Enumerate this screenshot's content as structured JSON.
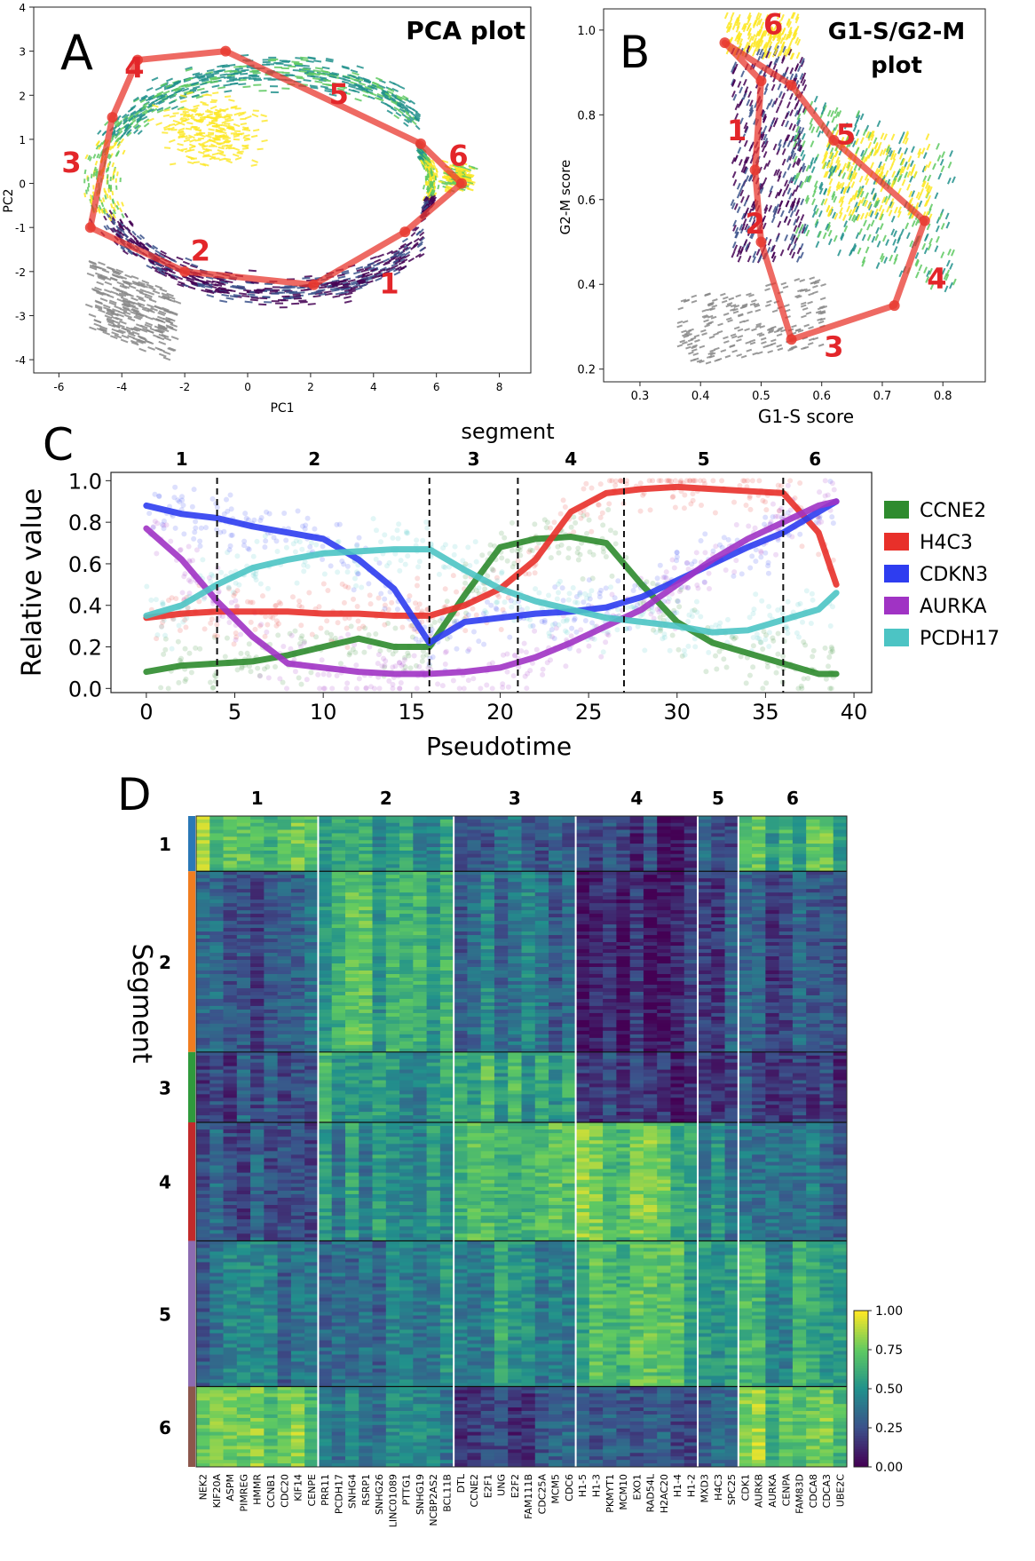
{
  "colors": {
    "viridis": [
      "#440154",
      "#3b528b",
      "#21918c",
      "#5ec962",
      "#fde725"
    ],
    "trajectory": "#e8382f",
    "label_red": "#e3262a",
    "segment_bar": [
      "#2a78b6",
      "#f07d20",
      "#2f9a3c",
      "#c22a2a",
      "#8c6bb1",
      "#8c564b"
    ]
  },
  "chart_data": [
    {
      "panel": "A",
      "type": "scatter",
      "title": "PCA plot",
      "xlabel": "PC1",
      "ylabel": "PC2",
      "xlim": [
        -6.8,
        9
      ],
      "ylim": [
        -4.3,
        4
      ],
      "xticks": [
        -6,
        -4,
        -2,
        0,
        2,
        4,
        6,
        8
      ],
      "yticks": [
        -4,
        -3,
        -2,
        -1,
        0,
        1,
        2,
        3,
        4
      ],
      "trajectory": {
        "points": [
          [
            -5.0,
            -1.0
          ],
          [
            -4.3,
            1.5
          ],
          [
            -3.5,
            2.8
          ],
          [
            -0.7,
            3.0
          ],
          [
            5.5,
            0.9
          ],
          [
            6.8,
            0.0
          ],
          [
            5.0,
            -1.1
          ],
          [
            2.1,
            -2.3
          ],
          [
            -2.0,
            -2.0
          ]
        ],
        "labels": [
          {
            "text": "1",
            "x": 4.5,
            "y": -2.5
          },
          {
            "text": "2",
            "x": -1.5,
            "y": -1.75
          },
          {
            "text": "3",
            "x": -5.6,
            "y": 0.25
          },
          {
            "text": "4",
            "x": -3.6,
            "y": 2.4
          },
          {
            "text": "5",
            "x": 2.9,
            "y": 1.8
          },
          {
            "text": "6",
            "x": 6.7,
            "y": 0.4
          }
        ]
      }
    },
    {
      "panel": "B",
      "type": "scatter",
      "title": "G1-S/G2-M plot",
      "title_lines": [
        "G1-S/G2-M",
        "plot"
      ],
      "xlabel": "G1-S score",
      "ylabel": "G2-M score",
      "xlim": [
        0.24,
        0.87
      ],
      "ylim": [
        0.17,
        1.05
      ],
      "xticks": [
        0.3,
        0.4,
        0.5,
        0.6,
        0.7,
        0.8
      ],
      "yticks": [
        0.2,
        0.4,
        0.6,
        0.8,
        1.0
      ],
      "trajectory": {
        "points": [
          [
            0.44,
            0.97
          ],
          [
            0.5,
            0.88
          ],
          [
            0.49,
            0.67
          ],
          [
            0.5,
            0.5
          ],
          [
            0.55,
            0.27
          ],
          [
            0.72,
            0.35
          ],
          [
            0.77,
            0.55
          ],
          [
            0.62,
            0.74
          ],
          [
            0.55,
            0.87
          ]
        ],
        "labels": [
          {
            "text": "1",
            "x": 0.46,
            "y": 0.74
          },
          {
            "text": "2",
            "x": 0.49,
            "y": 0.52
          },
          {
            "text": "3",
            "x": 0.62,
            "y": 0.23
          },
          {
            "text": "4",
            "x": 0.79,
            "y": 0.39
          },
          {
            "text": "5",
            "x": 0.64,
            "y": 0.73
          },
          {
            "text": "6",
            "x": 0.52,
            "y": 0.99
          }
        ]
      }
    },
    {
      "panel": "C",
      "type": "line",
      "title": "segment",
      "xlabel": "Pseudotime",
      "ylabel": "Relative value",
      "xlim": [
        -2,
        41
      ],
      "ylim": [
        -0.02,
        1.04
      ],
      "xticks": [
        0,
        5,
        10,
        15,
        20,
        25,
        30,
        35,
        40
      ],
      "yticks": [
        0.0,
        0.2,
        0.4,
        0.6,
        0.8,
        1.0
      ],
      "ytick_labels": [
        "0.0",
        "0.2",
        "0.4",
        "0.6",
        "0.8",
        "1.0"
      ],
      "segment_boundaries": [
        4,
        16,
        21,
        27,
        36
      ],
      "segment_labels": [
        {
          "text": "1",
          "x": 2
        },
        {
          "text": "2",
          "x": 9.5
        },
        {
          "text": "3",
          "x": 18.5
        },
        {
          "text": "4",
          "x": 24
        },
        {
          "text": "5",
          "x": 31.5
        },
        {
          "text": "6",
          "x": 37.8
        }
      ],
      "x": [
        0,
        2,
        4,
        6,
        8,
        10,
        12,
        14,
        16,
        18,
        20,
        22,
        24,
        26,
        28,
        30,
        32,
        34,
        36,
        38,
        39
      ],
      "series": [
        {
          "name": "CCNE2",
          "color": "#2e8b2e",
          "values": [
            0.08,
            0.11,
            0.12,
            0.13,
            0.16,
            0.2,
            0.24,
            0.2,
            0.2,
            0.45,
            0.68,
            0.72,
            0.73,
            0.7,
            0.5,
            0.32,
            0.22,
            0.17,
            0.12,
            0.07,
            0.07
          ]
        },
        {
          "name": "H4C3",
          "color": "#e8302a",
          "values": [
            0.34,
            0.36,
            0.37,
            0.37,
            0.37,
            0.36,
            0.36,
            0.35,
            0.35,
            0.4,
            0.48,
            0.62,
            0.85,
            0.94,
            0.96,
            0.97,
            0.96,
            0.95,
            0.94,
            0.75,
            0.5
          ]
        },
        {
          "name": "CDKN3",
          "color": "#2e3df0",
          "values": [
            0.88,
            0.84,
            0.82,
            0.78,
            0.75,
            0.72,
            0.62,
            0.48,
            0.22,
            0.32,
            0.34,
            0.36,
            0.37,
            0.39,
            0.44,
            0.52,
            0.6,
            0.68,
            0.75,
            0.85,
            0.9
          ]
        },
        {
          "name": "AURKA",
          "color": "#a033c4",
          "values": [
            0.77,
            0.62,
            0.42,
            0.25,
            0.12,
            0.1,
            0.08,
            0.07,
            0.07,
            0.08,
            0.1,
            0.15,
            0.22,
            0.3,
            0.38,
            0.5,
            0.62,
            0.72,
            0.8,
            0.88,
            0.9
          ]
        },
        {
          "name": "PCDH17",
          "color": "#4cc4c4",
          "values": [
            0.35,
            0.4,
            0.5,
            0.58,
            0.62,
            0.65,
            0.66,
            0.67,
            0.67,
            0.57,
            0.48,
            0.42,
            0.38,
            0.34,
            0.32,
            0.3,
            0.27,
            0.28,
            0.33,
            0.38,
            0.46
          ]
        }
      ]
    },
    {
      "panel": "D",
      "type": "heatmap",
      "ylabel": "Segment",
      "row_groups": [
        "1",
        "2",
        "3",
        "4",
        "5",
        "6"
      ],
      "row_group_sizes": [
        55,
        180,
        70,
        118,
        145,
        80
      ],
      "col_groups": [
        {
          "label": "1",
          "genes": [
            "NEK2",
            "KIF20A",
            "ASPM",
            "PIMREG",
            "HMMR",
            "CCNB1",
            "CDC20",
            "KIF14",
            "CENPE"
          ]
        },
        {
          "label": "2",
          "genes": [
            "PRR11",
            "PCDH17",
            "SNHG4",
            "RSRP1",
            "SNHG26",
            "LINC01089",
            "PTTG1",
            "SNHG19",
            "NCBP2AS2",
            "BCL11B"
          ]
        },
        {
          "label": "3",
          "genes": [
            "DTL",
            "CCNE2",
            "E2F1",
            "UNG",
            "E2F2",
            "FAM111B",
            "CDC25A",
            "MCM5",
            "CDC6"
          ]
        },
        {
          "label": "4",
          "genes": [
            "H1-5",
            "H1-3",
            "PKMYT1",
            "MCM10",
            "EXO1",
            "RAD54L",
            "H2AC20",
            "H1-4",
            "H1-2"
          ]
        },
        {
          "label": "5",
          "genes": [
            "MXD3",
            "H4C3",
            "SPC25"
          ]
        },
        {
          "label": "6",
          "genes": [
            "CDK1",
            "AURKB",
            "AURKA",
            "CENPA",
            "FAM83D",
            "CDCA8",
            "CDCA3",
            "UBE2C"
          ]
        }
      ],
      "block_means": [
        [
          0.75,
          0.55,
          0.3,
          0.15,
          0.3,
          0.65
        ],
        [
          0.3,
          0.62,
          0.38,
          0.12,
          0.22,
          0.28
        ],
        [
          0.25,
          0.55,
          0.6,
          0.15,
          0.22,
          0.22
        ],
        [
          0.3,
          0.48,
          0.7,
          0.72,
          0.5,
          0.38
        ],
        [
          0.4,
          0.42,
          0.5,
          0.62,
          0.6,
          0.55
        ],
        [
          0.78,
          0.45,
          0.22,
          0.25,
          0.3,
          0.75
        ]
      ],
      "colorbar": {
        "min": 0.0,
        "max": 1.0,
        "ticks": [
          "0.00",
          "0.25",
          "0.50",
          "0.75",
          "1.00"
        ]
      }
    }
  ]
}
